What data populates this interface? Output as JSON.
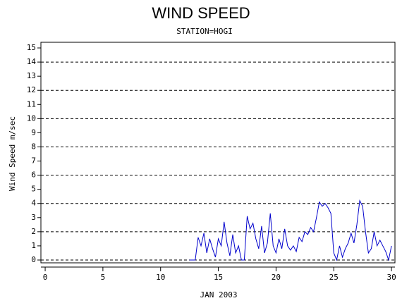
{
  "chart_data": {
    "type": "line",
    "title": "WIND SPEED",
    "subtitle": "STATION=HOGI",
    "x_label": "JAN 2003",
    "y_label": "Wind Speed m/sec",
    "xlim": [
      -0.37,
      30.3
    ],
    "ylim": [
      -0.2,
      15.4
    ],
    "xticks": [
      0,
      5,
      10,
      15,
      20,
      25,
      30
    ],
    "yticks": [
      0,
      1,
      2,
      3,
      4,
      5,
      6,
      7,
      8,
      9,
      10,
      11,
      12,
      13,
      14,
      15
    ],
    "grid_lines": [
      0,
      2,
      4,
      6,
      8,
      10,
      12,
      14
    ],
    "x": [
      12.5,
      12.75,
      13,
      13.25,
      13.5,
      13.75,
      14,
      14.25,
      14.5,
      14.75,
      15,
      15.25,
      15.5,
      15.75,
      16,
      16.25,
      16.5,
      16.75,
      17,
      17.25,
      17.5,
      17.75,
      18,
      18.25,
      18.5,
      18.75,
      19,
      19.25,
      19.5,
      19.75,
      20,
      20.25,
      20.5,
      20.75,
      21,
      21.25,
      21.5,
      21.75,
      22,
      22.25,
      22.5,
      22.75,
      23,
      23.25,
      23.5,
      23.75,
      24,
      24.25,
      24.5,
      24.75,
      25,
      25.25,
      25.5,
      25.75,
      26,
      26.25,
      26.5,
      26.75,
      27,
      27.25,
      27.5,
      27.75,
      28,
      28.25,
      28.5,
      28.75,
      29,
      29.25,
      29.5,
      29.75,
      30
    ],
    "series": [
      {
        "name": "Wind Speed",
        "color": "#0000cc",
        "values": [
          0,
          0,
          0,
          1.6,
          1.0,
          1.9,
          0.5,
          1.5,
          0.8,
          0.2,
          1.5,
          1.0,
          2.7,
          1.2,
          0.3,
          1.8,
          0.5,
          1.0,
          0,
          0,
          3.1,
          2.2,
          2.6,
          1.5,
          0.8,
          2.4,
          0.5,
          1.2,
          3.3,
          1.0,
          0.5,
          1.5,
          0.8,
          2.2,
          1.0,
          0.7,
          1.0,
          0.6,
          1.6,
          1.3,
          2.0,
          1.8,
          2.3,
          2.0,
          3.0,
          4.1,
          3.8,
          4.0,
          3.7,
          3.3,
          0.5,
          0,
          1.0,
          0.2,
          0.8,
          1.2,
          1.9,
          1.2,
          2.5,
          4.2,
          3.8,
          2.0,
          0.5,
          0.8,
          2.0,
          1.0,
          1.4,
          1.0,
          0.6,
          0,
          1.0
        ]
      }
    ]
  }
}
